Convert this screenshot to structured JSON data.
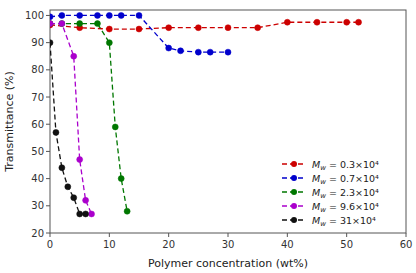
{
  "chart_data": {
    "type": "line",
    "x_label": "Polymer concentration (wt%)",
    "y_label": "Transmittance (%)",
    "series": [
      {
        "name": "Mw = 0.3×10⁴",
        "color": "#cc0000",
        "marker": "o",
        "line_style": "dashed",
        "x": [
          0,
          5,
          10,
          15,
          20,
          25,
          30,
          35,
          40,
          45,
          50,
          52
        ],
        "values": [
          96.5,
          95.5,
          95.0,
          95.0,
          95.5,
          95.5,
          95.5,
          95.5,
          97.5,
          97.5,
          97.5,
          97.5
        ]
      },
      {
        "name": "Mw = 0.7×10⁴",
        "color": "#0000cc",
        "marker": "o",
        "line_style": "dashed",
        "x": [
          0,
          2,
          5,
          8,
          10,
          12,
          15,
          20,
          22,
          25,
          27,
          30
        ],
        "values": [
          99.5,
          100.0,
          100.0,
          100.0,
          100.0,
          100.0,
          100.0,
          88.0,
          87.0,
          86.5,
          86.5,
          86.5
        ]
      },
      {
        "name": "Mw = 2.3×10⁴",
        "color": "#007700",
        "marker": "o",
        "line_style": "dashed",
        "x": [
          0,
          2,
          5,
          8,
          10,
          11,
          12,
          13
        ],
        "values": [
          97.0,
          97.0,
          97.0,
          97.0,
          90.0,
          59.0,
          40.0,
          28.0
        ]
      },
      {
        "name": "Mw = 9.6×10⁴",
        "color": "#aa00cc",
        "marker": "o",
        "line_style": "dashed",
        "x": [
          0,
          2,
          4,
          5,
          6,
          7
        ],
        "values": [
          97.0,
          97.0,
          85.0,
          47.0,
          32.0,
          27.0
        ]
      },
      {
        "name": "Mw = 31×10⁴",
        "color": "#111111",
        "marker": "o",
        "line_style": "dashed",
        "x": [
          0,
          1,
          2,
          3,
          4,
          5,
          6
        ],
        "values": [
          90.0,
          57.0,
          44.0,
          37.0,
          33.0,
          27.0,
          27.0
        ]
      }
    ],
    "xlim": [
      0,
      60
    ],
    "ylim": [
      20,
      102
    ],
    "xticks": [
      0,
      10,
      20,
      30,
      40,
      50,
      60
    ],
    "yticks": [
      20,
      30,
      40,
      50,
      60,
      70,
      80,
      90,
      100
    ],
    "grid": false,
    "legend": "lower right"
  }
}
